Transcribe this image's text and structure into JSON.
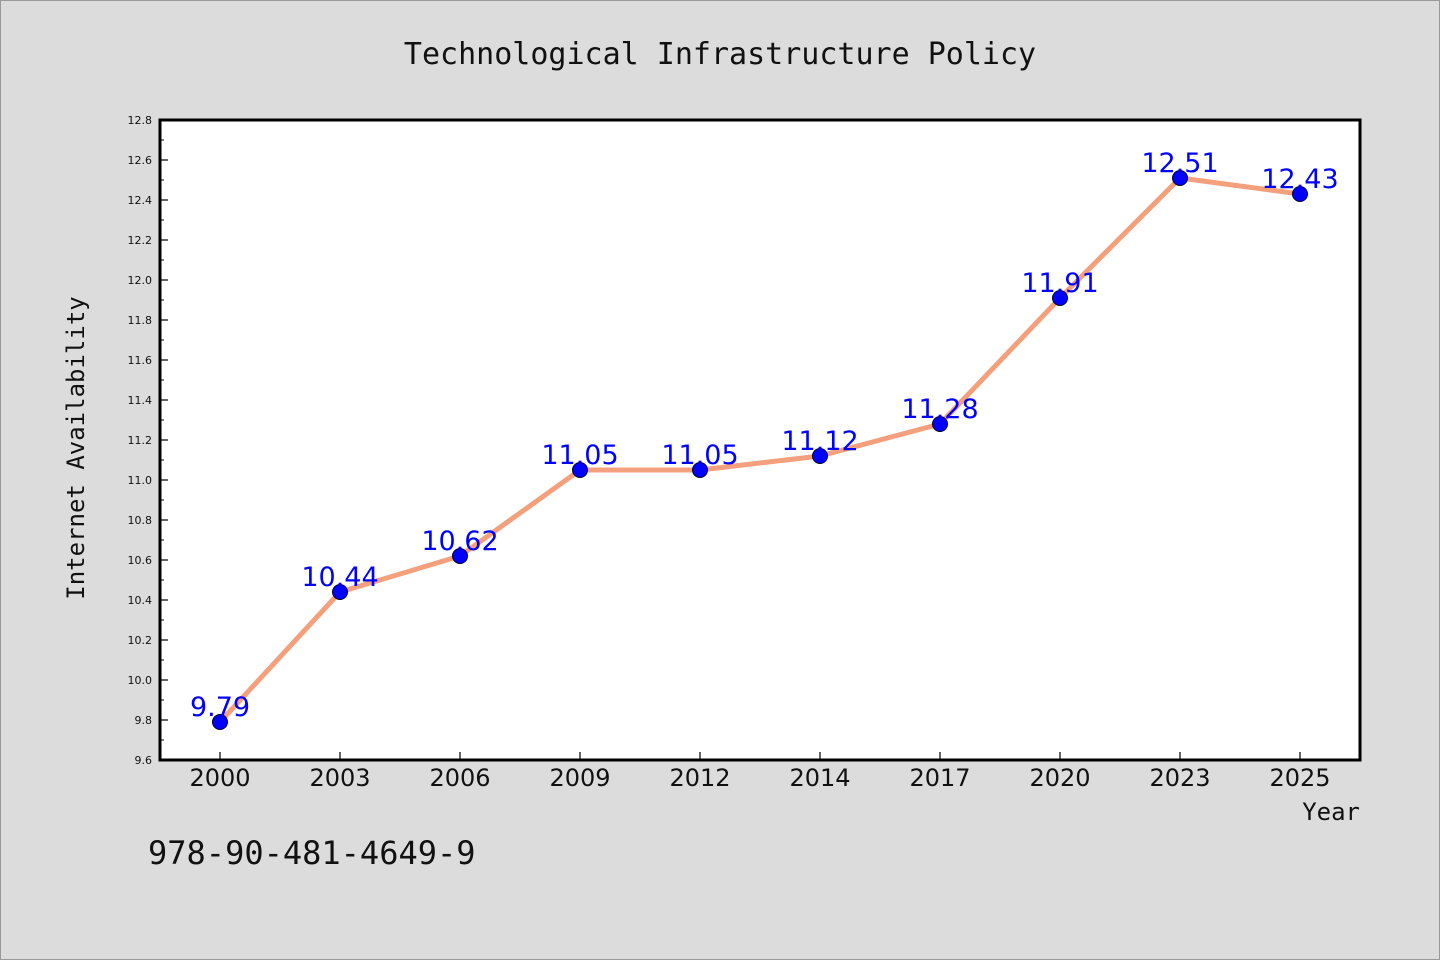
{
  "chart_data": {
    "type": "line",
    "title": "Technological Infrastructure Policy",
    "xlabel": "Year",
    "ylabel": "Internet Availability",
    "categories": [
      "2000",
      "2003",
      "2006",
      "2009",
      "2012",
      "2014",
      "2017",
      "2020",
      "2023",
      "2025"
    ],
    "values": [
      9.79,
      10.44,
      10.62,
      11.05,
      11.05,
      11.12,
      11.28,
      11.91,
      12.51,
      12.43
    ],
    "data_labels": [
      "9.79",
      "10.44",
      "10.62",
      "11.05",
      "11.05",
      "11.12",
      "11.28",
      "11.91",
      "12.51",
      "12.43"
    ],
    "ylim": [
      9.6,
      12.8
    ],
    "yticks": [
      "9.6",
      "9.8",
      "10.0",
      "10.2",
      "10.4",
      "10.6",
      "10.8",
      "11.0",
      "11.2",
      "11.4",
      "11.6",
      "11.8",
      "12.0",
      "12.2",
      "12.4",
      "12.6",
      "12.8"
    ],
    "grid": false,
    "legend": "none",
    "line_color": "#f4a07c",
    "marker_color": "#0000ff",
    "label_color": "#0000ff"
  },
  "footer": {
    "isbn": "978-90-481-4649-9"
  }
}
